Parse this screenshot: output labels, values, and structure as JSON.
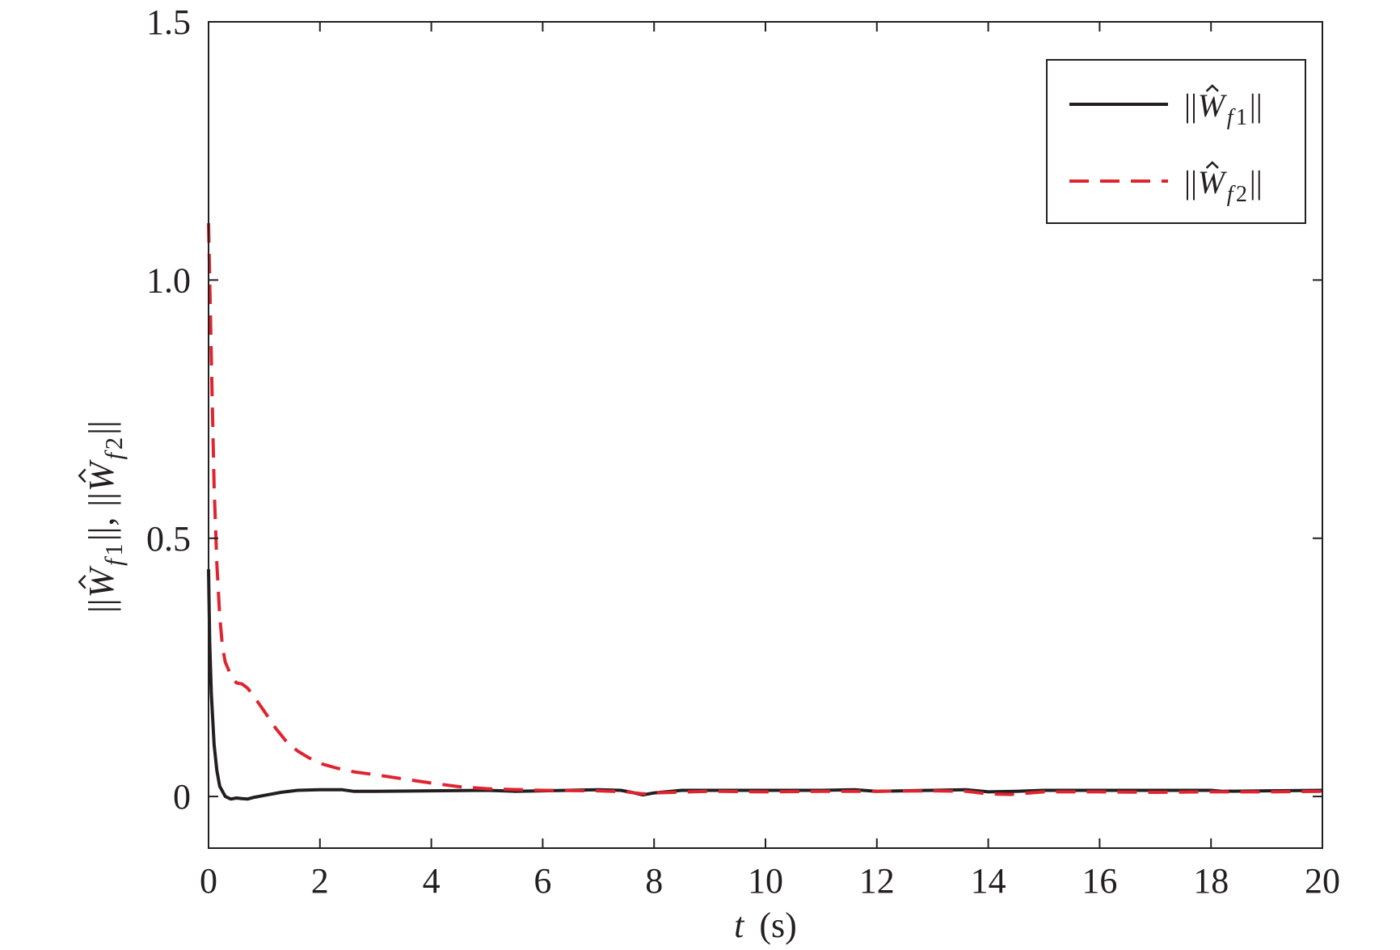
{
  "chart_data": {
    "type": "line",
    "xlabel": {
      "var": "t",
      "unit": "(s)"
    },
    "ylabel": "||Ŵf1||, ||Ŵf2||",
    "xlim": [
      0,
      20
    ],
    "ylim": [
      -0.1,
      1.5
    ],
    "xticks": [
      "0",
      "2",
      "4",
      "6",
      "8",
      "10",
      "12",
      "14",
      "16",
      "18",
      "20"
    ],
    "xtick_values": [
      0,
      2,
      4,
      6,
      8,
      10,
      12,
      14,
      16,
      18,
      20
    ],
    "yticks": [
      "0",
      "0.5",
      "1.0",
      "1.5"
    ],
    "ytick_values": [
      0,
      0.5,
      1.0,
      1.5
    ],
    "grid": false,
    "legend_position": "top-right",
    "series": [
      {
        "name": "||Ŵf1||",
        "legend": {
          "base": "W",
          "sub": "f1"
        },
        "color": "#231f20",
        "style": "solid",
        "x": [
          0,
          0.02,
          0.05,
          0.1,
          0.15,
          0.2,
          0.3,
          0.4,
          0.5,
          0.6,
          0.7,
          0.8,
          1.0,
          1.3,
          1.6,
          2.0,
          2.4,
          2.6,
          3.0,
          4.0,
          5.0,
          5.5,
          6.0,
          7.0,
          7.4,
          7.6,
          7.8,
          8.0,
          8.5,
          9.0,
          10,
          11,
          11.6,
          12,
          13,
          13.6,
          14,
          14.5,
          15,
          16,
          17,
          18,
          18.2,
          19,
          20
        ],
        "y": [
          0.44,
          0.3,
          0.2,
          0.1,
          0.05,
          0.02,
          0.0,
          -0.005,
          -0.003,
          -0.004,
          -0.005,
          -0.002,
          0.002,
          0.008,
          0.012,
          0.013,
          0.013,
          0.01,
          0.01,
          0.011,
          0.012,
          0.01,
          0.011,
          0.013,
          0.012,
          0.008,
          0.003,
          0.007,
          0.012,
          0.012,
          0.012,
          0.012,
          0.013,
          0.01,
          0.012,
          0.013,
          0.009,
          0.01,
          0.012,
          0.012,
          0.012,
          0.012,
          0.01,
          0.011,
          0.012
        ]
      },
      {
        "name": "||Ŵf2||",
        "legend": {
          "base": "W",
          "sub": "f2"
        },
        "color": "#e0242f",
        "style": "dashed",
        "x": [
          0,
          0.03,
          0.06,
          0.1,
          0.15,
          0.2,
          0.25,
          0.3,
          0.4,
          0.5,
          0.6,
          0.7,
          0.8,
          1.0,
          1.2,
          1.4,
          1.6,
          1.8,
          2.0,
          2.3,
          2.6,
          3.0,
          3.5,
          4.0,
          4.5,
          5.0,
          6.0,
          7.0,
          7.5,
          7.8,
          8.0,
          9.0,
          10,
          11,
          12,
          13,
          13.6,
          14,
          14.4,
          15,
          16,
          17,
          18,
          19,
          20
        ],
        "y": [
          1.11,
          0.95,
          0.8,
          0.6,
          0.45,
          0.35,
          0.29,
          0.26,
          0.235,
          0.22,
          0.218,
          0.21,
          0.196,
          0.165,
          0.133,
          0.106,
          0.088,
          0.075,
          0.064,
          0.055,
          0.048,
          0.042,
          0.034,
          0.026,
          0.019,
          0.015,
          0.012,
          0.011,
          0.009,
          0.005,
          0.007,
          0.01,
          0.009,
          0.01,
          0.01,
          0.011,
          0.01,
          0.005,
          0.004,
          0.009,
          0.009,
          0.008,
          0.009,
          0.009,
          0.01
        ]
      }
    ]
  }
}
